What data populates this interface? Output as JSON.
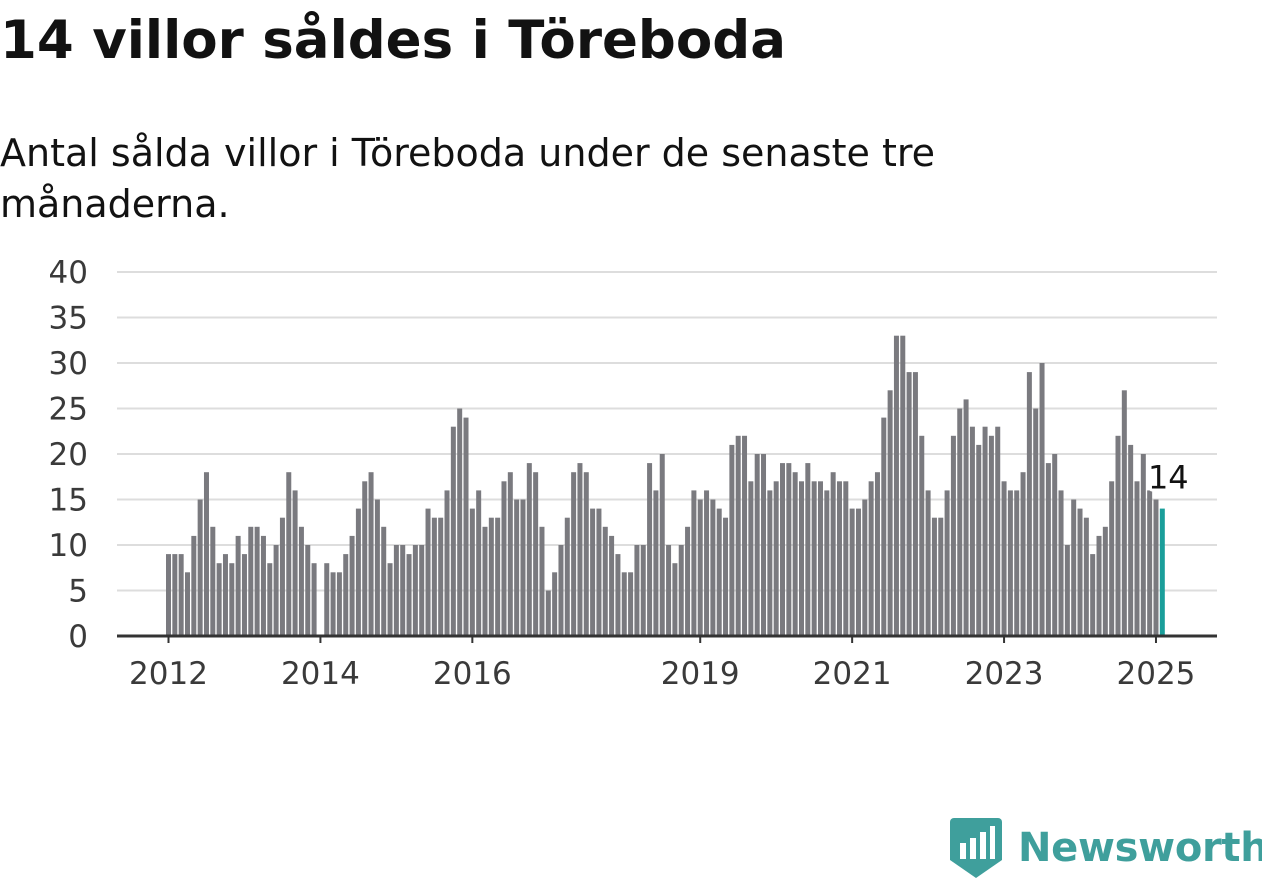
{
  "header": {
    "title": "14 villor såldes i Töreboda",
    "subtitle": "Antal sålda villor i Töreboda under de senaste tre månaderna."
  },
  "brand": {
    "name": "Newsworthy",
    "icon": "newsworthy-logo-icon",
    "color": "#3f9f9c"
  },
  "chart_data": {
    "type": "bar",
    "title": "14 villor såldes i Töreboda",
    "subtitle": "Antal sålda villor i Töreboda under de senaste tre månaderna.",
    "x_start": "2012-01",
    "x_interval": "month",
    "values": [
      9,
      9,
      9,
      7,
      11,
      15,
      18,
      12,
      8,
      9,
      8,
      11,
      9,
      12,
      12,
      11,
      8,
      10,
      13,
      18,
      16,
      12,
      10,
      8,
      null,
      8,
      7,
      7,
      9,
      11,
      14,
      17,
      18,
      15,
      12,
      8,
      10,
      10,
      9,
      10,
      10,
      14,
      13,
      13,
      16,
      23,
      25,
      24,
      14,
      16,
      12,
      13,
      13,
      17,
      18,
      15,
      15,
      19,
      18,
      12,
      5,
      7,
      10,
      13,
      18,
      19,
      18,
      14,
      14,
      12,
      11,
      9,
      7,
      7,
      10,
      10,
      19,
      16,
      20,
      10,
      8,
      10,
      12,
      16,
      15,
      16,
      15,
      14,
      13,
      21,
      22,
      22,
      17,
      20,
      20,
      16,
      17,
      19,
      19,
      18,
      17,
      19,
      17,
      17,
      16,
      18,
      17,
      17,
      14,
      14,
      15,
      17,
      18,
      24,
      27,
      33,
      33,
      29,
      29,
      22,
      16,
      13,
      13,
      16,
      22,
      25,
      26,
      23,
      21,
      23,
      22,
      23,
      17,
      16,
      16,
      18,
      29,
      25,
      30,
      19,
      20,
      16,
      10,
      15,
      14,
      13,
      9,
      11,
      12,
      17,
      22,
      27,
      21,
      17,
      20,
      16,
      15,
      14
    ],
    "highlight": {
      "index": 157,
      "value": 14,
      "label": "14",
      "color": "#1a9e9a"
    },
    "bar_color": "#7a7a7f",
    "x_tick_labels": [
      "2012",
      "2014",
      "2016",
      "2019",
      "2021",
      "2023",
      "2025"
    ],
    "x_tick_months": [
      0,
      24,
      48,
      84,
      108,
      132,
      156
    ],
    "y_ticks": [
      0,
      5,
      10,
      15,
      20,
      25,
      30,
      35,
      40
    ],
    "ylim": [
      0,
      40
    ],
    "grid": true,
    "xlabel": "",
    "ylabel": ""
  }
}
